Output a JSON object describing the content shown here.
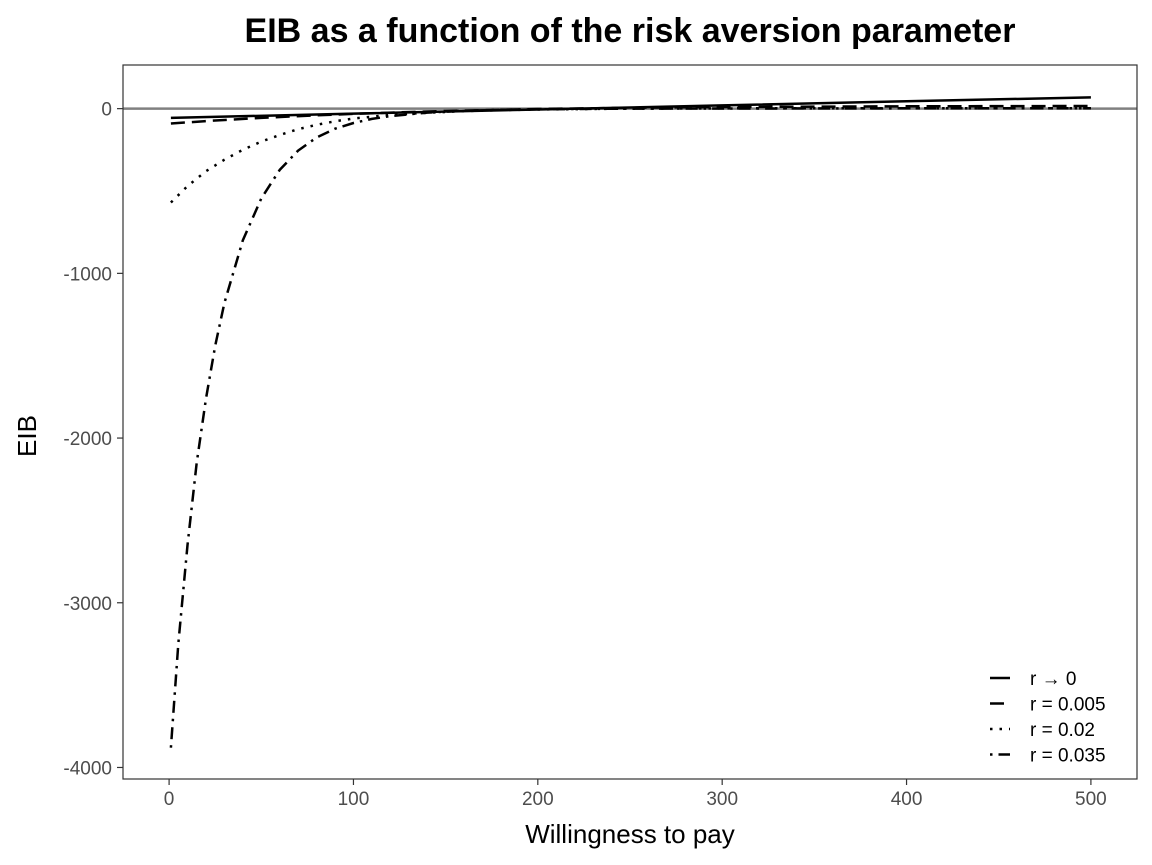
{
  "chart_data": {
    "type": "line",
    "title": "EIB as a function of the risk aversion parameter",
    "xlabel": "Willingness to pay",
    "ylabel": "EIB",
    "xlim": [
      -25,
      525
    ],
    "ylim": [
      -4070,
      265
    ],
    "x_ticks": [
      0,
      100,
      200,
      300,
      400,
      500
    ],
    "y_ticks": [
      0,
      -1000,
      -2000,
      -3000,
      -4000
    ],
    "grid": false,
    "legend_position": "bottom-right",
    "reference_line": {
      "y": 0,
      "color": "#808080"
    },
    "series": [
      {
        "name": "r → 0",
        "style": "solid",
        "x": [
          1,
          100,
          200,
          300,
          400,
          500
        ],
        "y": [
          -56,
          -30,
          -5,
          20,
          45,
          68
        ]
      },
      {
        "name": "r = 0.005",
        "style": "dashed",
        "x": [
          1,
          25,
          50,
          75,
          100,
          125,
          150,
          200,
          250,
          300,
          400,
          500
        ],
        "y": [
          -90,
          -72,
          -56,
          -43,
          -32,
          -22,
          -14,
          -2,
          5,
          10,
          14,
          16
        ]
      },
      {
        "name": "r = 0.02",
        "style": "dotted",
        "x": [
          1,
          10,
          20,
          30,
          40,
          50,
          60,
          70,
          80,
          90,
          100,
          120,
          140,
          160,
          180,
          200,
          250,
          300,
          400,
          500
        ],
        "y": [
          -570,
          -470,
          -380,
          -310,
          -250,
          -200,
          -160,
          -125,
          -98,
          -77,
          -60,
          -38,
          -25,
          -15,
          -9,
          -5,
          0,
          2,
          3,
          3
        ]
      },
      {
        "name": "r = 0.035",
        "style": "dotdash",
        "x": [
          1,
          5,
          10,
          15,
          20,
          25,
          30,
          40,
          50,
          60,
          70,
          80,
          90,
          100,
          110,
          120,
          140,
          160,
          180,
          200,
          250,
          300,
          400,
          500
        ],
        "y": [
          -3880,
          -3250,
          -2650,
          -2150,
          -1760,
          -1440,
          -1180,
          -800,
          -545,
          -372,
          -255,
          -175,
          -122,
          -87,
          -62,
          -45,
          -24,
          -13,
          -7,
          -4,
          0,
          1,
          2,
          2
        ]
      }
    ]
  }
}
